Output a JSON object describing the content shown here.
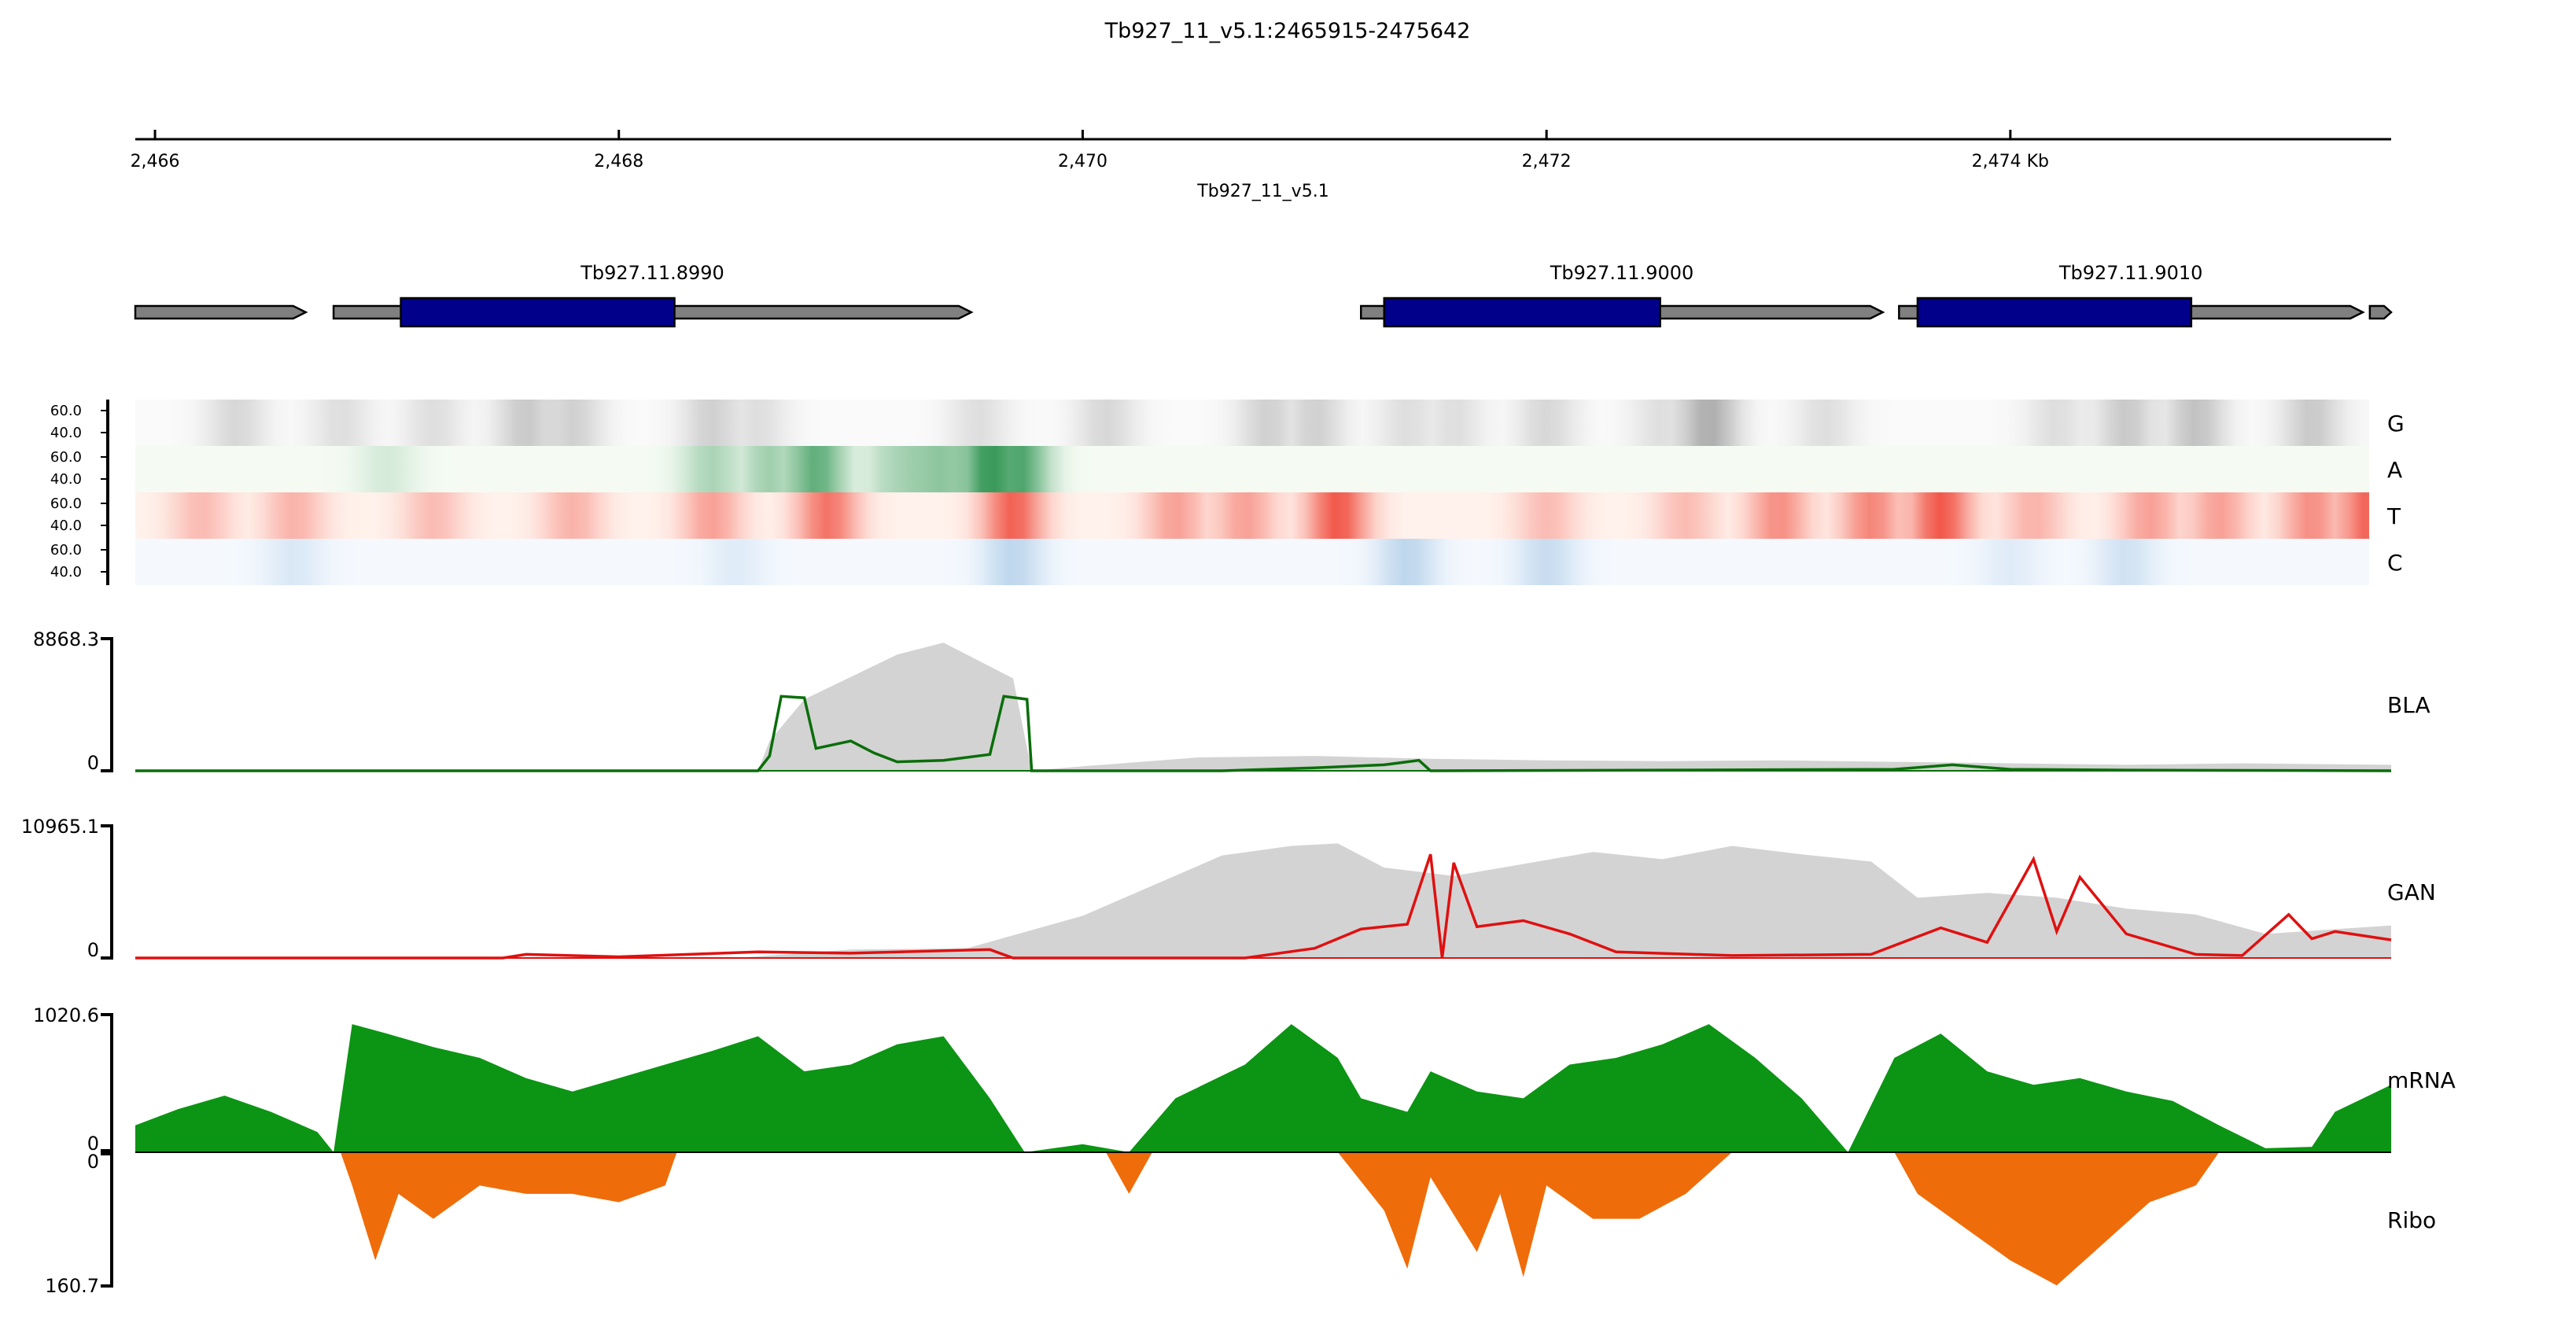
{
  "title": "Tb927_11_v5.1:2465915-2475642",
  "colors": {
    "gene_arrow": "#808080",
    "cds": "#00008b",
    "G": "#6e6e6e",
    "A": "#1e8c45",
    "T": "#ef3b2c",
    "C": "#3f86c6",
    "coverage_grey": "#d3d3d3",
    "BLA_line": "#0a6e0a",
    "GAN_line": "#e01010",
    "mRNA": "#0c9414",
    "Ribo": "#ef6c0a"
  },
  "chart_data": {
    "type": "area",
    "genome_axis": {
      "chrom": "Tb927_11_v5.1",
      "start": 2465915,
      "end": 2475642,
      "ticks": [
        {
          "value": 2466,
          "label": "2,466"
        },
        {
          "value": 2468,
          "label": "2,468"
        },
        {
          "value": 2470,
          "label": "2,470"
        },
        {
          "value": 2472,
          "label": "2,472"
        },
        {
          "value": 2474,
          "label": "2,474 Kb"
        }
      ],
      "label": "Tb927_11_v5.1"
    },
    "genes": [
      {
        "start": 2465915,
        "end": 2466650,
        "cds": null,
        "label": ""
      },
      {
        "start": 2466770,
        "end": 2469520,
        "cds": [
          2467060,
          2468240
        ],
        "label": "Tb927.11.8990"
      },
      {
        "start": 2471200,
        "end": 2473450,
        "cds": [
          2471300,
          2472490
        ],
        "label": "Tb927.11.9000"
      },
      {
        "start": 2473520,
        "end": 2475520,
        "cds": [
          2473600,
          2474780
        ],
        "label": "Tb927.11.9010"
      },
      {
        "start": 2475550,
        "end": 2475642,
        "cds": null,
        "label": ""
      }
    ],
    "nucleotide_heatmap": {
      "scale_ticks": [
        "60.0",
        "40.0"
      ],
      "rows": [
        {
          "name": "G",
          "hotspots": [
            [
              2466350,
              0.25
            ],
            [
              2466800,
              0.2
            ],
            [
              2467200,
              0.2
            ],
            [
              2467600,
              0.35
            ],
            [
              2467800,
              0.3
            ],
            [
              2468400,
              0.3
            ],
            [
              2468600,
              0.2
            ],
            [
              2469550,
              0.2
            ],
            [
              2470100,
              0.25
            ],
            [
              2470800,
              0.3
            ],
            [
              2471000,
              0.3
            ],
            [
              2471400,
              0.2
            ],
            [
              2471600,
              0.2
            ],
            [
              2472000,
              0.25
            ],
            [
              2472500,
              0.2
            ],
            [
              2472700,
              0.55
            ],
            [
              2473200,
              0.2
            ],
            [
              2474200,
              0.2
            ],
            [
              2474500,
              0.35
            ],
            [
              2474800,
              0.4
            ],
            [
              2475300,
              0.35
            ]
          ]
        },
        {
          "name": "A",
          "hotspots": [
            [
              2467000,
              0.15
            ],
            [
              2468400,
              0.35
            ],
            [
              2468650,
              0.4
            ],
            [
              2468850,
              0.7
            ],
            [
              2469200,
              0.35
            ],
            [
              2469300,
              0.45
            ],
            [
              2469400,
              0.5
            ],
            [
              2469600,
              0.9
            ],
            [
              2469720,
              0.8
            ]
          ]
        },
        {
          "name": "T",
          "hotspots": [
            [
              2466200,
              0.3
            ],
            [
              2466600,
              0.35
            ],
            [
              2467200,
              0.3
            ],
            [
              2467800,
              0.35
            ],
            [
              2468400,
              0.45
            ],
            [
              2468900,
              0.7
            ],
            [
              2469700,
              0.8
            ],
            [
              2470400,
              0.45
            ],
            [
              2470700,
              0.45
            ],
            [
              2471100,
              0.85
            ],
            [
              2472000,
              0.3
            ],
            [
              2472600,
              0.3
            ],
            [
              2473000,
              0.55
            ],
            [
              2473400,
              0.6
            ],
            [
              2473700,
              0.85
            ],
            [
              2474100,
              0.35
            ],
            [
              2474600,
              0.45
            ],
            [
              2474900,
              0.45
            ],
            [
              2475300,
              0.55
            ],
            [
              2475550,
              0.8
            ]
          ]
        },
        {
          "name": "C",
          "hotspots": [
            [
              2466600,
              0.15
            ],
            [
              2468500,
              0.12
            ],
            [
              2469700,
              0.3
            ],
            [
              2471400,
              0.3
            ],
            [
              2472000,
              0.25
            ],
            [
              2474000,
              0.12
            ],
            [
              2474500,
              0.2
            ]
          ]
        }
      ]
    },
    "tracks": [
      {
        "name": "BLA",
        "max_label": "8868.3",
        "zero_label": "0",
        "max": 8868.3,
        "coverage": [
          [
            2465915,
            0
          ],
          [
            2468600,
            0
          ],
          [
            2468650,
            2000
          ],
          [
            2468800,
            4800
          ],
          [
            2469000,
            6300
          ],
          [
            2469200,
            7800
          ],
          [
            2469400,
            8600
          ],
          [
            2469600,
            7000
          ],
          [
            2469700,
            6200
          ],
          [
            2469780,
            0
          ],
          [
            2470000,
            300
          ],
          [
            2470500,
            900
          ],
          [
            2471000,
            1000
          ],
          [
            2471500,
            800
          ],
          [
            2472000,
            700
          ],
          [
            2472500,
            650
          ],
          [
            2473000,
            700
          ],
          [
            2473500,
            600
          ],
          [
            2474000,
            500
          ],
          [
            2474500,
            400
          ],
          [
            2475000,
            500
          ],
          [
            2475642,
            400
          ]
        ],
        "signal": [
          [
            2465915,
            0
          ],
          [
            2468600,
            0
          ],
          [
            2468650,
            1000
          ],
          [
            2468700,
            5000
          ],
          [
            2468800,
            4900
          ],
          [
            2468850,
            1500
          ],
          [
            2469000,
            2000
          ],
          [
            2469100,
            1200
          ],
          [
            2469200,
            600
          ],
          [
            2469400,
            700
          ],
          [
            2469600,
            1100
          ],
          [
            2469660,
            5000
          ],
          [
            2469760,
            4800
          ],
          [
            2469780,
            0
          ],
          [
            2470600,
            0
          ],
          [
            2471000,
            200
          ],
          [
            2471300,
            400
          ],
          [
            2471450,
            700
          ],
          [
            2471500,
            0
          ],
          [
            2472500,
            50
          ],
          [
            2473500,
            100
          ],
          [
            2473750,
            400
          ],
          [
            2474000,
            100
          ],
          [
            2474500,
            50
          ],
          [
            2475642,
            0
          ]
        ]
      },
      {
        "name": "GAN",
        "max_label": "10965.1",
        "zero_label": "0",
        "max": 10965.1,
        "coverage": [
          [
            2465915,
            0
          ],
          [
            2468500,
            0
          ],
          [
            2469000,
            700
          ],
          [
            2469500,
            800
          ],
          [
            2470000,
            3500
          ],
          [
            2470300,
            6000
          ],
          [
            2470600,
            8500
          ],
          [
            2470900,
            9300
          ],
          [
            2471100,
            9500
          ],
          [
            2471300,
            7500
          ],
          [
            2471600,
            6800
          ],
          [
            2471900,
            7800
          ],
          [
            2472200,
            8800
          ],
          [
            2472500,
            8200
          ],
          [
            2472800,
            9300
          ],
          [
            2473100,
            8600
          ],
          [
            2473400,
            8000
          ],
          [
            2473600,
            5000
          ],
          [
            2473900,
            5400
          ],
          [
            2474200,
            5000
          ],
          [
            2474500,
            4100
          ],
          [
            2474800,
            3600
          ],
          [
            2475100,
            2000
          ],
          [
            2475642,
            2700
          ]
        ],
        "signal": [
          [
            2465915,
            0
          ],
          [
            2467500,
            0
          ],
          [
            2467600,
            300
          ],
          [
            2468000,
            100
          ],
          [
            2468600,
            500
          ],
          [
            2469000,
            400
          ],
          [
            2469600,
            700
          ],
          [
            2469700,
            0
          ],
          [
            2470700,
            0
          ],
          [
            2471000,
            800
          ],
          [
            2471200,
            2400
          ],
          [
            2471400,
            2800
          ],
          [
            2471500,
            8600
          ],
          [
            2471550,
            0
          ],
          [
            2471600,
            7900
          ],
          [
            2471700,
            2600
          ],
          [
            2471900,
            3100
          ],
          [
            2472100,
            2000
          ],
          [
            2472300,
            500
          ],
          [
            2472800,
            200
          ],
          [
            2473400,
            300
          ],
          [
            2473700,
            2500
          ],
          [
            2473900,
            1300
          ],
          [
            2474100,
            8200
          ],
          [
            2474200,
            2200
          ],
          [
            2474300,
            6700
          ],
          [
            2474500,
            2000
          ],
          [
            2474800,
            300
          ],
          [
            2475000,
            200
          ],
          [
            2475200,
            3600
          ],
          [
            2475300,
            1600
          ],
          [
            2475400,
            2200
          ],
          [
            2475642,
            1500
          ]
        ]
      }
    ],
    "mirrored_track": {
      "top": {
        "name": "mRNA",
        "max_label": "1020.6",
        "zero_label": "0",
        "max": 1020.6,
        "values": [
          [
            2465915,
            200
          ],
          [
            2466100,
            320
          ],
          [
            2466300,
            420
          ],
          [
            2466500,
            300
          ],
          [
            2466700,
            150
          ],
          [
            2466770,
            0
          ],
          [
            2466850,
            950
          ],
          [
            2467000,
            880
          ],
          [
            2467200,
            780
          ],
          [
            2467400,
            700
          ],
          [
            2467600,
            550
          ],
          [
            2467800,
            450
          ],
          [
            2468000,
            550
          ],
          [
            2468200,
            650
          ],
          [
            2468400,
            750
          ],
          [
            2468600,
            860
          ],
          [
            2468800,
            600
          ],
          [
            2469000,
            650
          ],
          [
            2469200,
            800
          ],
          [
            2469400,
            860
          ],
          [
            2469600,
            400
          ],
          [
            2469750,
            0
          ],
          [
            2470000,
            60
          ],
          [
            2470200,
            0
          ],
          [
            2470400,
            400
          ],
          [
            2470700,
            650
          ],
          [
            2470900,
            950
          ],
          [
            2471100,
            700
          ],
          [
            2471200,
            400
          ],
          [
            2471400,
            300
          ],
          [
            2471500,
            600
          ],
          [
            2471700,
            450
          ],
          [
            2471900,
            400
          ],
          [
            2472100,
            650
          ],
          [
            2472300,
            700
          ],
          [
            2472500,
            800
          ],
          [
            2472700,
            950
          ],
          [
            2472900,
            700
          ],
          [
            2473100,
            400
          ],
          [
            2473300,
            0
          ],
          [
            2473500,
            700
          ],
          [
            2473700,
            880
          ],
          [
            2473900,
            600
          ],
          [
            2474100,
            500
          ],
          [
            2474300,
            550
          ],
          [
            2474500,
            450
          ],
          [
            2474700,
            380
          ],
          [
            2474900,
            200
          ],
          [
            2475100,
            30
          ],
          [
            2475300,
            40
          ],
          [
            2475400,
            300
          ],
          [
            2475642,
            500
          ]
        ]
      },
      "bottom": {
        "name": "Ribo",
        "max_label": "160.7",
        "zero_label": "0",
        "max": 160.7,
        "values": [
          [
            2465915,
            0
          ],
          [
            2466800,
            0
          ],
          [
            2466850,
            40
          ],
          [
            2466950,
            130
          ],
          [
            2467050,
            50
          ],
          [
            2467200,
            80
          ],
          [
            2467400,
            40
          ],
          [
            2467600,
            50
          ],
          [
            2467800,
            50
          ],
          [
            2468000,
            60
          ],
          [
            2468200,
            40
          ],
          [
            2468250,
            0
          ],
          [
            2469500,
            0
          ],
          [
            2470100,
            0
          ],
          [
            2470200,
            50
          ],
          [
            2470300,
            0
          ],
          [
            2471100,
            0
          ],
          [
            2471300,
            70
          ],
          [
            2471400,
            140
          ],
          [
            2471500,
            30
          ],
          [
            2471700,
            120
          ],
          [
            2471800,
            50
          ],
          [
            2471900,
            150
          ],
          [
            2472000,
            40
          ],
          [
            2472200,
            80
          ],
          [
            2472400,
            80
          ],
          [
            2472600,
            50
          ],
          [
            2472800,
            0
          ],
          [
            2473500,
            0
          ],
          [
            2473600,
            50
          ],
          [
            2473800,
            90
          ],
          [
            2474000,
            130
          ],
          [
            2474200,
            160
          ],
          [
            2474400,
            110
          ],
          [
            2474600,
            60
          ],
          [
            2474800,
            40
          ],
          [
            2474900,
            0
          ],
          [
            2475642,
            0
          ]
        ]
      }
    }
  }
}
